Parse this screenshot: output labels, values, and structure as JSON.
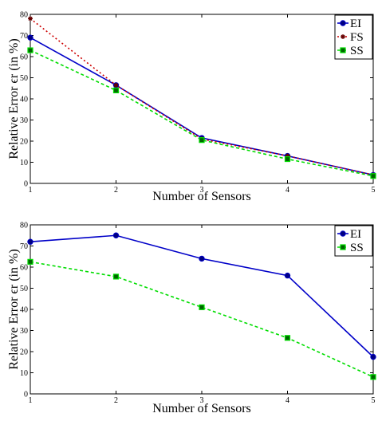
{
  "chart_data": [
    {
      "type": "line",
      "xlabel": "Number of Sensors",
      "ylabel": "Relative Error ϵr (in %)",
      "x": [
        1,
        2,
        3,
        4,
        5
      ],
      "xlim": [
        1,
        5
      ],
      "ylim": [
        0,
        80
      ],
      "xticks": [
        1,
        2,
        3,
        4,
        5
      ],
      "yticks": [
        0,
        10,
        20,
        30,
        40,
        50,
        60,
        70,
        80
      ],
      "grid": false,
      "legend_position": "top-right",
      "series": [
        {
          "name": "EI",
          "values": [
            69,
            46.5,
            21.5,
            13,
            4
          ],
          "color": "#0000c8",
          "dash": "solid",
          "marker": "circle"
        },
        {
          "name": "FS",
          "values": [
            78,
            46.5,
            21,
            13,
            4
          ],
          "color": "#cc0000",
          "dash": "dotted",
          "marker": "star"
        },
        {
          "name": "SS",
          "values": [
            63,
            44,
            20.5,
            11.5,
            3.5
          ],
          "color": "#00dd00",
          "dash": "dashed",
          "marker": "square"
        }
      ]
    },
    {
      "type": "line",
      "xlabel": "Number of Sensors",
      "ylabel": "Relative Error ϵr (in %)",
      "x": [
        1,
        2,
        3,
        4,
        5
      ],
      "xlim": [
        1,
        5
      ],
      "ylim": [
        0,
        80
      ],
      "xticks": [
        1,
        2,
        3,
        4,
        5
      ],
      "yticks": [
        0,
        10,
        20,
        30,
        40,
        50,
        60,
        70,
        80
      ],
      "grid": false,
      "legend_position": "top-right",
      "series": [
        {
          "name": "EI",
          "values": [
            72,
            75,
            64,
            56,
            17.5
          ],
          "color": "#0000c8",
          "dash": "solid",
          "marker": "circle"
        },
        {
          "name": "SS",
          "values": [
            62.5,
            55.5,
            41,
            26.5,
            8
          ],
          "color": "#00dd00",
          "dash": "dashed",
          "marker": "square"
        }
      ]
    }
  ]
}
